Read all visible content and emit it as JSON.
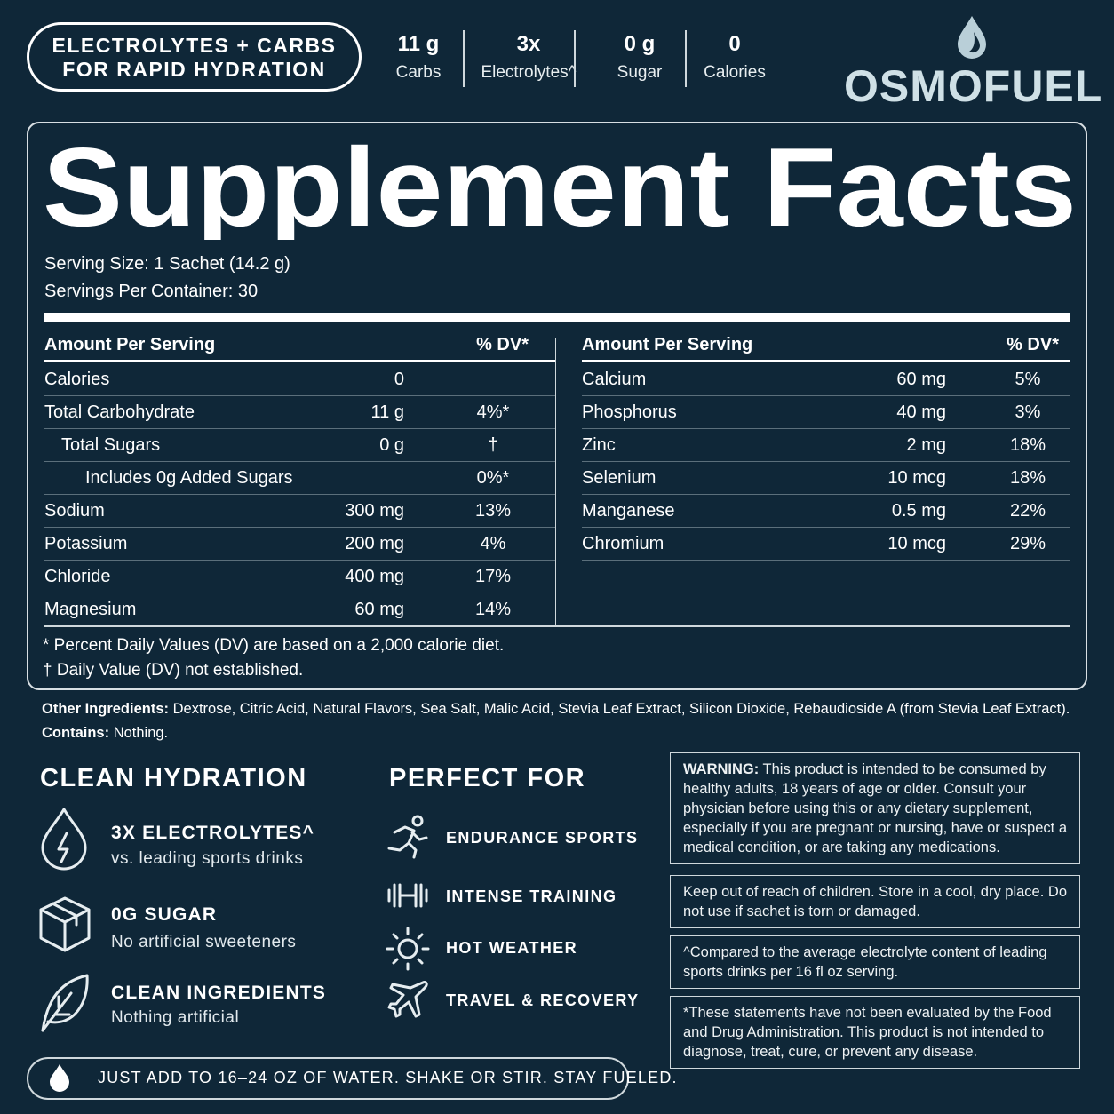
{
  "header": {
    "badge": [
      "ELECTROLYTES + CARBS",
      "FOR RAPID HYDRATION"
    ],
    "stats": [
      {
        "value": "11 g",
        "label": "Carbs"
      },
      {
        "value": "3x",
        "label": "Electrolytes^"
      },
      {
        "value": "0 g",
        "label": "Sugar"
      },
      {
        "value": "0",
        "label": "Calories"
      }
    ],
    "brand": "OSMOFUEL"
  },
  "facts": {
    "title": "Supplement Facts",
    "serving_size": "Serving Size: 1 Sachet (14.2 g)",
    "servings": "Servings Per Container: 30",
    "left": {
      "headers": [
        "Amount Per Serving",
        "% DV*"
      ],
      "rows": [
        {
          "name": "Calories",
          "amount": "0"
        },
        {
          "name": "Total Carbohydrate",
          "amount": "11 g",
          "dv": "4%*"
        },
        {
          "name": "Total Sugars",
          "amount": "0 g",
          "dv": "†"
        },
        {
          "name": "Includes 0g Added Sugars",
          "dv": "0%*"
        },
        {
          "name": "Sodium",
          "amount": "300 mg",
          "dv": "13%"
        },
        {
          "name": "Potassium",
          "amount": "200 mg",
          "dv": "4%"
        },
        {
          "name": "Chloride",
          "amount": "400 mg",
          "dv": "17%"
        },
        {
          "name": "Magnesium",
          "amount": "60 mg",
          "dv": "14%"
        }
      ]
    },
    "right": {
      "headers": [
        "Amount Per Serving",
        "% DV*"
      ],
      "rows": [
        {
          "name": "Calcium",
          "amount": "60 mg",
          "dv": "5%"
        },
        {
          "name": "Phosphorus",
          "amount": "40 mg",
          "dv": "3%"
        },
        {
          "name": "Zinc",
          "amount": "2 mg",
          "dv": "18%"
        },
        {
          "name": "Selenium",
          "amount": "10 mcg",
          "dv": "18%"
        },
        {
          "name": "Manganese",
          "amount": "0.5 mg",
          "dv": "22%"
        },
        {
          "name": "Chromium",
          "amount": "10 mcg",
          "dv": "29%"
        }
      ]
    },
    "footnotes": [
      "* Percent Daily Values (DV) are based on a 2,000 calorie diet.",
      "† Daily Value (DV) not established."
    ]
  },
  "ingredients": {
    "label": "Other Ingredients:",
    "text": "Dextrose, Citric Acid, Natural Flavors, Sea Salt, Malic Acid, Stevia Leaf Extract, Silicon Dioxide, Rebaudioside A (from Stevia Leaf Extract).",
    "contains_label": "Contains:",
    "contains": "Nothing."
  },
  "clean": {
    "title": "CLEAN HYDRATION",
    "items": [
      {
        "title": "3X ELECTROLYTES^",
        "subtitle": "vs. leading sports drinks"
      },
      {
        "title": "0G SUGAR",
        "subtitle": "No artificial sweeteners"
      },
      {
        "title": "CLEAN INGREDIENTS",
        "subtitle": "Nothing artificial"
      }
    ]
  },
  "perfect": {
    "title": "PERFECT FOR",
    "items": [
      "ENDURANCE SPORTS",
      "INTENSE TRAINING",
      "HOT WEATHER",
      "TRAVEL & RECOVERY"
    ]
  },
  "notices": {
    "warning_label": "WARNING:",
    "warning": "This product is intended to be consumed by healthy adults, 18 years of age or older. Consult your physician before using this or any dietary supplement, especially if you are pregnant or nursing, have or suspect a medical condition, or are taking any medications.",
    "storage": "Keep out of reach of children. Store in a cool, dry place. Do not use if sachet is torn or damaged.",
    "comparison": "^Compared to the average electrolyte content of leading sports drinks per 16 fl oz serving.",
    "fda": "*These statements have not been evaluated by the Food and Drug Administration. This product is not intended to diagnose, treat, cure, or prevent any disease."
  },
  "footer": "JUST ADD TO 16–24 OZ OF WATER. SHAKE OR STIR. STAY FUELED."
}
